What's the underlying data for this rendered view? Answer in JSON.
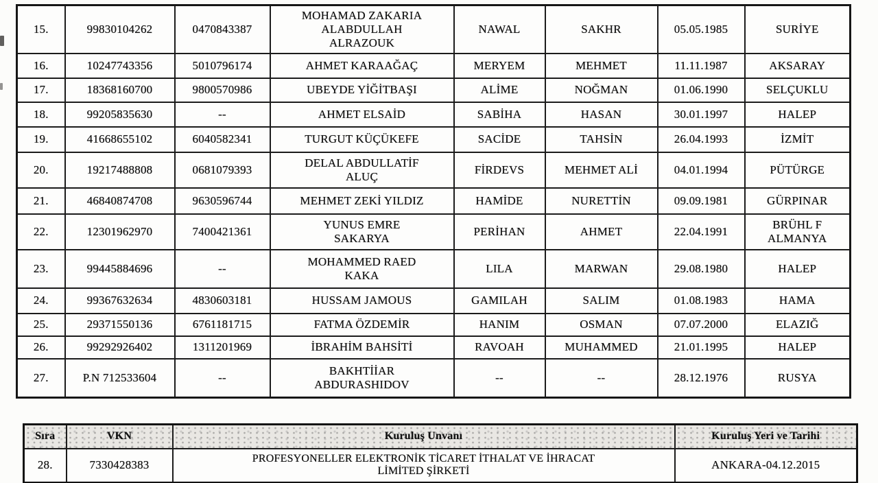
{
  "colors": {
    "border": "#1b1b1b",
    "text": "#131313",
    "header_shade": "#e9e7e3"
  },
  "main_table": {
    "rows": [
      {
        "no": "15.",
        "id1": "99830104262",
        "id2": "0470843387",
        "name": "MOHAMAD ZAKARIA\nALABDULLAH\nALRAZOUK",
        "mother": "NAWAL",
        "father": "SAKHR",
        "birth_date": "05.05.1985",
        "birth_place": "SURİYE"
      },
      {
        "no": "16.",
        "id1": "10247743356",
        "id2": "5010796174",
        "name": "AHMET KARAAĞAÇ",
        "mother": "MERYEM",
        "father": "MEHMET",
        "birth_date": "11.11.1987",
        "birth_place": "AKSARAY"
      },
      {
        "no": "17.",
        "id1": "18368160700",
        "id2": "9800570986",
        "name": "UBEYDE YİĞİTBAŞI",
        "mother": "ALİME",
        "father": "NOĞMAN",
        "birth_date": "01.06.1990",
        "birth_place": "SELÇUKLU"
      },
      {
        "no": "18.",
        "id1": "99205835630",
        "id2": "--",
        "name": "AHMET ELSAİD",
        "mother": "SABİHA",
        "father": "HASAN",
        "birth_date": "30.01.1997",
        "birth_place": "HALEP"
      },
      {
        "no": "19.",
        "id1": "41668655102",
        "id2": "6040582341",
        "name": "TURGUT KÜÇÜKEFE",
        "mother": "SACİDE",
        "father": "TAHSİN",
        "birth_date": "26.04.1993",
        "birth_place": "İZMİT"
      },
      {
        "no": "20.",
        "id1": "19217488808",
        "id2": "0681079393",
        "name": "DELAL ABDULLATİF\nALUÇ",
        "mother": "FİRDEVS",
        "father": "MEHMET ALİ",
        "birth_date": "04.01.1994",
        "birth_place": "PÜTÜRGE"
      },
      {
        "no": "21.",
        "id1": "46840874708",
        "id2": "9630596744",
        "name": "MEHMET ZEKİ YILDIZ",
        "mother": "HAMİDE",
        "father": "NURETTİN",
        "birth_date": "09.09.1981",
        "birth_place": "GÜRPINAR"
      },
      {
        "no": "22.",
        "id1": "12301962970",
        "id2": "7400421361",
        "name": "YUNUS EMRE\nSAKARYA",
        "mother": "PERİHAN",
        "father": "AHMET",
        "birth_date": "22.04.1991",
        "birth_place": "BRÜHL F\nALMANYA"
      },
      {
        "no": "23.",
        "id1": "99445884696",
        "id2": "--",
        "name": "MOHAMMED RAED\nKAKA",
        "mother": "LILA",
        "father": "MARWAN",
        "birth_date": "29.08.1980",
        "birth_place": "HALEP"
      },
      {
        "no": "24.",
        "id1": "99367632634",
        "id2": "4830603181",
        "name": "HUSSAM JAMOUS",
        "mother": "GAMILAH",
        "father": "SALIM",
        "birth_date": "01.08.1983",
        "birth_place": "HAMA"
      },
      {
        "no": "25.",
        "id1": "29371550136",
        "id2": "6761181715",
        "name": "FATMA ÖZDEMİR",
        "mother": "HANIM",
        "father": "OSMAN",
        "birth_date": "07.07.2000",
        "birth_place": "ELAZIĞ"
      },
      {
        "no": "26.",
        "id1": "99292926402",
        "id2": "1311201969",
        "name": "İBRAHİM BAHSİTİ",
        "mother": "RAVOAH",
        "father": "MUHAMMED",
        "birth_date": "21.01.1995",
        "birth_place": "HALEP"
      },
      {
        "no": "27.",
        "id1": "P.N 712533604",
        "id2": "--",
        "name": "BAKHTİİAR\nABDURASHIDOV",
        "mother": "--",
        "father": "--",
        "birth_date": "28.12.1976",
        "birth_place": "RUSYA"
      }
    ]
  },
  "company_table": {
    "headers": {
      "sira": "Sıra",
      "vkn": "VKN",
      "unvan": "Kuruluş Unvanı",
      "yer": "Kuruluş Yeri ve Tarihi"
    },
    "rows": [
      {
        "sira": "28.",
        "vkn": "7330428383",
        "unvan": "PROFESYONELLER ELEKTRONİK TİCARET İTHALAT VE İHRACAT\nLİMİTED ŞİRKETİ",
        "yer": "ANKARA-04.12.2015"
      }
    ]
  }
}
